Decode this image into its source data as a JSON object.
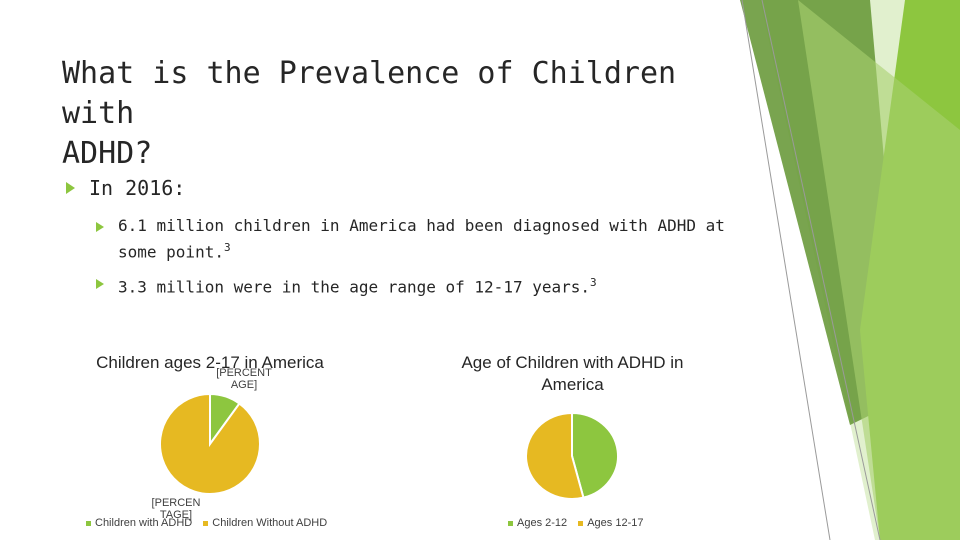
{
  "slide": {
    "title_line1": "What is the Prevalence of Children with",
    "title_line2": "ADHD?",
    "bullet_main": "In 2016:",
    "sub1_line1": "6.1 million children in America had been diagnosed with ADHD at",
    "sub1_line2": "some point.",
    "sub1_sup": "3",
    "sub2": "3.3 million were in the age range of 12-17 years.",
    "sub2_sup": "3"
  },
  "colors": {
    "bullet": "#8dc63f",
    "green_slice": "#8dc63f",
    "gold_slice": "#e6b922",
    "deco_green_dark": "#6a9a3c",
    "deco_green": "#8dc63f",
    "deco_green_light": "#c9e4a6"
  },
  "chart_data": [
    {
      "type": "pie",
      "title": "Children ages 2-17 in America",
      "slices": [
        {
          "name": "Children with ADHD",
          "value": 0.1,
          "color": "#8dc63f"
        },
        {
          "name": "Children Without ADHD",
          "value": 0.9,
          "color": "#e6b922"
        }
      ],
      "data_labels": [
        "[PERCENT AGE]",
        "[PERCEN TAGE]"
      ],
      "legend": "bottom"
    },
    {
      "type": "pie",
      "title": "Age of Children with ADHD in America",
      "slices": [
        {
          "name": "Ages 2-12",
          "value": 0.46,
          "color": "#8dc63f"
        },
        {
          "name": "Ages 12-17",
          "value": 0.54,
          "color": "#e6b922"
        }
      ],
      "legend": "bottom"
    }
  ]
}
